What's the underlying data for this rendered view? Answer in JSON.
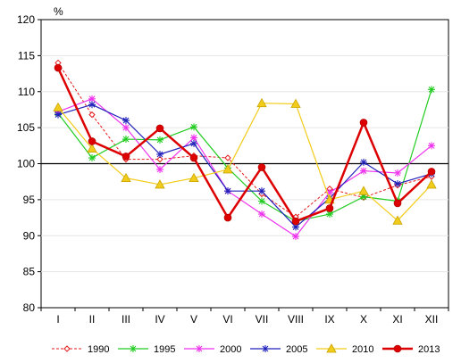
{
  "chart_data": {
    "type": "line",
    "ylabel": "%",
    "ylim": [
      80,
      120
    ],
    "yticks": [
      80,
      85,
      90,
      95,
      100,
      105,
      110,
      115,
      120
    ],
    "reference_line": 100,
    "categories": [
      "I",
      "II",
      "III",
      "IV",
      "V",
      "VI",
      "VII",
      "VIII",
      "IX",
      "X",
      "XI",
      "XII"
    ],
    "legend_position": "bottom",
    "series": [
      {
        "name": "1990",
        "color": "#e41a1c",
        "marker": "diamond",
        "dash": true,
        "width": 1,
        "values": [
          114.0,
          106.8,
          100.6,
          100.6,
          101.1,
          100.8,
          95.8,
          92.6,
          96.5,
          95.3,
          97.0,
          98.2
        ]
      },
      {
        "name": "1995",
        "color": "#22cc22",
        "marker": "star",
        "dash": false,
        "width": 1.2,
        "values": [
          107.0,
          100.8,
          103.4,
          103.3,
          105.1,
          99.4,
          94.8,
          92.0,
          93.0,
          95.4,
          94.8,
          110.3
        ]
      },
      {
        "name": "2000",
        "color": "#ee33ee",
        "marker": "star",
        "dash": false,
        "width": 1.2,
        "values": [
          107.2,
          109.0,
          105.0,
          99.2,
          103.6,
          96.2,
          93.0,
          89.9,
          96.0,
          99.0,
          98.7,
          102.5
        ]
      },
      {
        "name": "2005",
        "color": "#2222bb",
        "marker": "star",
        "dash": false,
        "width": 1.2,
        "values": [
          106.8,
          108.2,
          106.0,
          101.3,
          102.8,
          96.2,
          96.2,
          91.2,
          95.2,
          100.2,
          97.2,
          98.6
        ]
      },
      {
        "name": "2010",
        "color": "#f2cc1a",
        "marker": "triangle",
        "dash": false,
        "width": 1.2,
        "values": [
          107.8,
          102.1,
          98.0,
          97.1,
          98.0,
          99.2,
          108.4,
          108.3,
          95.0,
          96.2,
          92.1,
          97.1
        ]
      },
      {
        "name": "2013",
        "color": "#dd0000",
        "marker": "circle",
        "dash": false,
        "width": 2.5,
        "values": [
          113.3,
          103.1,
          101.0,
          104.9,
          100.8,
          92.5,
          99.5,
          92.0,
          93.8,
          105.7,
          94.5,
          98.9
        ]
      }
    ]
  }
}
